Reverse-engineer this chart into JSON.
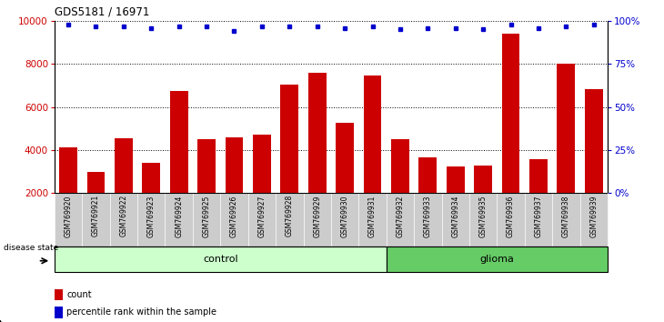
{
  "title": "GDS5181 / 16971",
  "samples": [
    "GSM769920",
    "GSM769921",
    "GSM769922",
    "GSM769923",
    "GSM769924",
    "GSM769925",
    "GSM769926",
    "GSM769927",
    "GSM769928",
    "GSM769929",
    "GSM769930",
    "GSM769931",
    "GSM769932",
    "GSM769933",
    "GSM769934",
    "GSM769935",
    "GSM769936",
    "GSM769937",
    "GSM769938",
    "GSM769939"
  ],
  "counts": [
    4150,
    3000,
    4550,
    3400,
    6750,
    4500,
    4600,
    4700,
    7050,
    7600,
    5250,
    7450,
    4500,
    3650,
    3250,
    3300,
    9400,
    3600,
    8000,
    6850
  ],
  "percentile_ranks": [
    98,
    97,
    97,
    96,
    97,
    97,
    94,
    97,
    97,
    97,
    96,
    97,
    95,
    96,
    96,
    95,
    98,
    96,
    97,
    98
  ],
  "control_count": 12,
  "glioma_count": 8,
  "bar_color": "#cc0000",
  "dot_color": "#0000cc",
  "ylim_left": [
    2000,
    10000
  ],
  "ylim_right": [
    0,
    100
  ],
  "yticks_left": [
    2000,
    4000,
    6000,
    8000,
    10000
  ],
  "yticks_right": [
    0,
    25,
    50,
    75,
    100
  ],
  "grid_values": [
    4000,
    6000,
    8000,
    10000
  ],
  "control_color": "#ccffcc",
  "glioma_color": "#66cc66",
  "sample_bg_color": "#cccccc",
  "legend_count_label": "count",
  "legend_pct_label": "percentile rank within the sample",
  "fig_width": 7.3,
  "fig_height": 3.54
}
